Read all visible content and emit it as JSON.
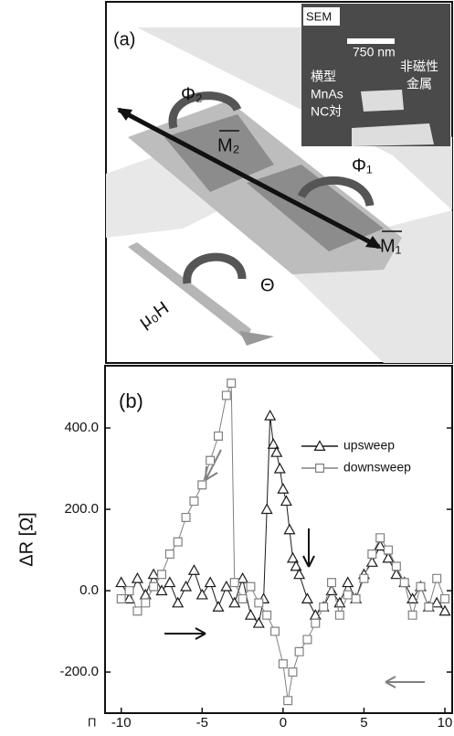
{
  "panel_a": {
    "label": "(a)",
    "sem": "SEM",
    "scale": "750 nm",
    "nonmag1": "非磁性",
    "nonmag2": "金属",
    "pair1": "横型",
    "pair2": "MnAs",
    "pair3": "NC対",
    "phi2": "Φ₂",
    "m2": "M₂",
    "phi1": "Φ₁",
    "m1": "M₁",
    "theta": "Θ",
    "field": "μ₀H"
  },
  "chart_data": {
    "type": "scatter",
    "panel_label": "(b)",
    "y_label": "ΔR [Ω]",
    "x_label": "Π",
    "xlim": [
      -11,
      10.45
    ],
    "ylim": [
      -301,
      553
    ],
    "xticks": [
      -10,
      -5,
      0,
      5,
      10
    ],
    "yticks": [
      {
        "value": -200,
        "label": "-200.0"
      },
      {
        "value": 0,
        "label": "0.0"
      },
      {
        "value": 200,
        "label": "200.0"
      },
      {
        "value": 400,
        "label": "400.0"
      }
    ],
    "legend": "upper right",
    "series": [
      {
        "name": "upsweep",
        "color": "#1a1a1a",
        "marker": "triangle",
        "x": [
          -10,
          -9.5,
          -9,
          -8.5,
          -8,
          -7.5,
          -7,
          -6.5,
          -6,
          -5.5,
          -5,
          -4.5,
          -4,
          -3.5,
          -3,
          -2.5,
          -2,
          -1.5,
          -1.2,
          -1,
          -0.8,
          -0.6,
          -0.4,
          -0.2,
          0,
          0.2,
          0.4,
          0.6,
          0.8,
          1,
          1.5,
          2,
          2.5,
          3,
          3.5,
          4,
          4.5,
          5,
          5.5,
          6,
          6.5,
          7,
          7.5,
          8,
          8.5,
          9,
          9.5,
          10
        ],
        "values": [
          20,
          -20,
          30,
          -10,
          40,
          0,
          20,
          -30,
          10,
          50,
          -10,
          20,
          -40,
          10,
          -30,
          30,
          -60,
          -80,
          -20,
          200,
          430,
          360,
          340,
          300,
          250,
          220,
          150,
          80,
          60,
          40,
          -20,
          -60,
          -40,
          0,
          -30,
          20,
          -20,
          40,
          70,
          110,
          80,
          40,
          20,
          -20,
          10,
          -40,
          -30,
          -50
        ]
      },
      {
        "name": "downsweep",
        "color": "#808080",
        "marker": "square",
        "x": [
          10,
          9.5,
          9,
          8.5,
          8,
          7.5,
          7,
          6.5,
          6,
          5.5,
          5,
          4.5,
          4,
          3.5,
          3,
          2.5,
          2,
          1.5,
          1,
          0.6,
          0.3,
          0,
          -0.5,
          -1,
          -1.5,
          -2,
          -2.5,
          -3,
          -3.2,
          -3.5,
          -4,
          -4.5,
          -5,
          -5.5,
          -6,
          -6.5,
          -7,
          -7.5,
          -8,
          -8.5,
          -9,
          -9.5,
          -10
        ],
        "values": [
          -20,
          30,
          -40,
          10,
          -60,
          20,
          60,
          100,
          130,
          90,
          30,
          -20,
          -10,
          -60,
          20,
          -40,
          -80,
          -120,
          -150,
          -200,
          -270,
          -180,
          -100,
          -60,
          -30,
          10,
          -20,
          20,
          510,
          480,
          380,
          320,
          260,
          220,
          180,
          120,
          90,
          40,
          10,
          -30,
          -50,
          0,
          -20
        ]
      }
    ]
  }
}
